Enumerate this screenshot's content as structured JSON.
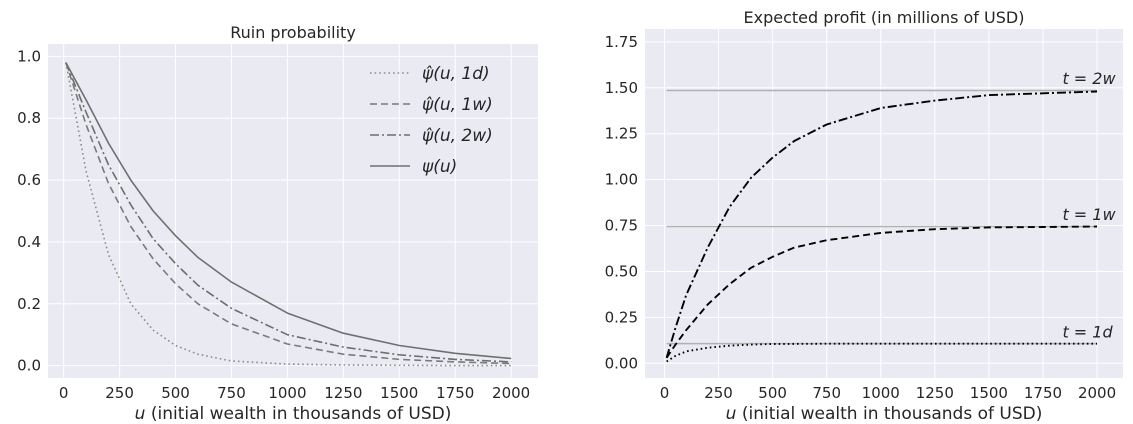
{
  "chart_data": [
    {
      "type": "line",
      "title": "Ruin probability",
      "xlabel": "u (initial wealth in thousands of USD)",
      "xlabel_var": "u",
      "xlabel_rest": " (initial wealth in thousands of USD)",
      "ylabel": "",
      "xlim": [
        -70,
        2120
      ],
      "ylim": [
        -0.04,
        1.04
      ],
      "xticks": [
        0,
        250,
        500,
        750,
        1000,
        1250,
        1500,
        1750,
        2000
      ],
      "yticks": [
        0.0,
        0.2,
        0.4,
        0.6,
        0.8,
        1.0
      ],
      "ytick_labels": [
        "0.0",
        "0.2",
        "0.4",
        "0.6",
        "0.8",
        "1.0"
      ],
      "grid": true,
      "legend_position": "top-right",
      "series": [
        {
          "name": "ψ̂(u, 1d)",
          "style": "dotted",
          "color": "#8c8c8c",
          "x": [
            10,
            100,
            200,
            300,
            400,
            500,
            600,
            750,
            1000,
            1250,
            1500,
            1750,
            2000
          ],
          "y": [
            0.98,
            0.63,
            0.36,
            0.2,
            0.115,
            0.065,
            0.037,
            0.015,
            0.005,
            0.002,
            0.001,
            0.0,
            0.0
          ]
        },
        {
          "name": "ψ̂(u, 1w)",
          "style": "dashed",
          "color": "#7a7a7a",
          "x": [
            10,
            100,
            200,
            300,
            400,
            500,
            600,
            750,
            1000,
            1250,
            1500,
            1750,
            2000
          ],
          "y": [
            0.98,
            0.78,
            0.59,
            0.45,
            0.345,
            0.265,
            0.2,
            0.135,
            0.07,
            0.037,
            0.02,
            0.012,
            0.007
          ]
        },
        {
          "name": "ψ̂(u, 2w)",
          "style": "dashdot",
          "color": "#6e6e6e",
          "x": [
            10,
            100,
            200,
            300,
            400,
            500,
            600,
            750,
            1000,
            1250,
            1500,
            1750,
            2000
          ],
          "y": [
            0.98,
            0.82,
            0.65,
            0.52,
            0.41,
            0.33,
            0.26,
            0.185,
            0.1,
            0.06,
            0.035,
            0.02,
            0.012
          ]
        },
        {
          "name": "ψ(u)",
          "style": "solid",
          "color": "#707070",
          "x": [
            10,
            100,
            200,
            300,
            400,
            500,
            600,
            750,
            1000,
            1250,
            1500,
            1750,
            2000
          ],
          "y": [
            0.98,
            0.86,
            0.72,
            0.6,
            0.5,
            0.42,
            0.35,
            0.27,
            0.17,
            0.105,
            0.065,
            0.04,
            0.023
          ]
        }
      ]
    },
    {
      "type": "line",
      "title": "Expected profit (in millions of USD)",
      "xlabel": "u (initial wealth in thousands of USD)",
      "xlabel_var": "u",
      "xlabel_rest": " (initial wealth in thousands of USD)",
      "ylabel": "",
      "xlim": [
        -90,
        2120
      ],
      "ylim": [
        -0.08,
        1.82
      ],
      "xticks": [
        0,
        250,
        500,
        750,
        1000,
        1250,
        1500,
        1750,
        2000
      ],
      "yticks": [
        0.0,
        0.25,
        0.5,
        0.75,
        1.0,
        1.25,
        1.5,
        1.75
      ],
      "ytick_labels": [
        "0.00",
        "0.25",
        "0.50",
        "0.75",
        "1.00",
        "1.25",
        "1.50",
        "1.75"
      ],
      "grid": true,
      "annotations": [
        {
          "var": "t",
          "op": " = ",
          "val": "2w",
          "x": 1840,
          "y": 1.52
        },
        {
          "var": "t",
          "op": " = ",
          "val": "1w",
          "x": 1840,
          "y": 0.78
        },
        {
          "var": "t",
          "op": " = ",
          "val": "1d",
          "x": 1840,
          "y": 0.14
        }
      ],
      "hlines": [
        {
          "y": 1.485,
          "x0": 10,
          "x1": 2000,
          "color": "#b0b0b0"
        },
        {
          "y": 0.745,
          "x0": 10,
          "x1": 2000,
          "color": "#b0b0b0"
        },
        {
          "y": 0.107,
          "x0": 10,
          "x1": 2000,
          "color": "#b0b0b0"
        }
      ],
      "series": [
        {
          "style": "dashdot",
          "color": "#000000",
          "x": [
            10,
            50,
            100,
            200,
            300,
            400,
            500,
            600,
            750,
            1000,
            1250,
            1500,
            1750,
            2000
          ],
          "y": [
            0.03,
            0.19,
            0.37,
            0.63,
            0.85,
            1.01,
            1.12,
            1.21,
            1.3,
            1.39,
            1.43,
            1.46,
            1.47,
            1.48
          ]
        },
        {
          "style": "dashed",
          "color": "#000000",
          "x": [
            10,
            50,
            100,
            200,
            300,
            400,
            500,
            600,
            750,
            1000,
            1250,
            1500,
            1750,
            2000
          ],
          "y": [
            0.03,
            0.1,
            0.18,
            0.32,
            0.43,
            0.52,
            0.58,
            0.63,
            0.67,
            0.71,
            0.73,
            0.74,
            0.742,
            0.745
          ]
        },
        {
          "style": "dotted",
          "color": "#000000",
          "x": [
            10,
            50,
            100,
            200,
            300,
            400,
            500,
            750,
            1000,
            1500,
            2000
          ],
          "y": [
            0.01,
            0.04,
            0.065,
            0.085,
            0.096,
            0.102,
            0.105,
            0.107,
            0.107,
            0.107,
            0.107
          ]
        }
      ]
    }
  ]
}
